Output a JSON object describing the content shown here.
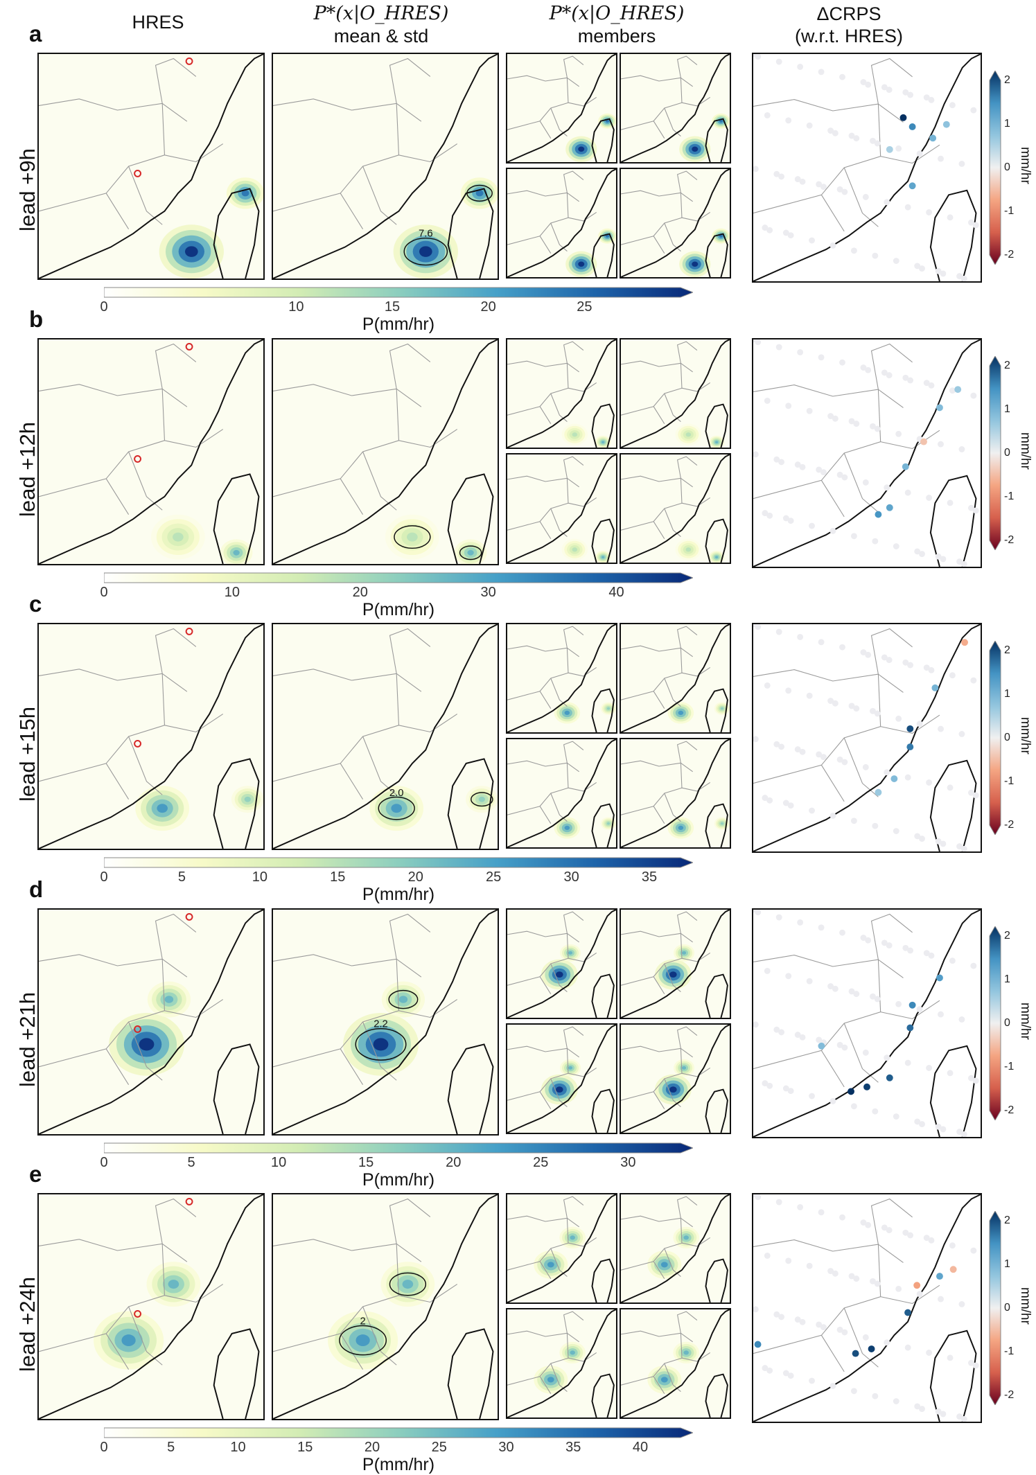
{
  "figure": {
    "column_titles": {
      "hres": "HRES",
      "mean_std_formula": "P*(x|O_HRES)",
      "mean_std": "mean & std",
      "members_formula": "P*(x|O_HRES)",
      "members": "members",
      "delta_crps": "ΔCRPS",
      "delta_crps_sub": "(w.r.t. HRES)"
    }
  },
  "chart_data": [
    {
      "type": "heatmap",
      "row": "a",
      "row_label": "lead +9h",
      "colorbar_label": "P(mm/hr)",
      "colorbar_ticks": [
        "0",
        "10",
        "15",
        "20",
        "25"
      ],
      "colorbar_range": [
        0,
        30
      ],
      "contour_labels": [
        "7.6"
      ],
      "delta_colorbar": {
        "label": "mm/hr",
        "ticks": [
          "2",
          "1",
          "0",
          "-1",
          "-2"
        ],
        "range": [
          -2,
          2
        ]
      },
      "precip_centers": [
        {
          "x": 0.68,
          "y": 0.88,
          "r": 0.12,
          "v": 1.0
        },
        {
          "x": 0.92,
          "y": 0.62,
          "r": 0.07,
          "v": 0.8
        }
      ],
      "station_dots": [
        {
          "x": 0.66,
          "y": 0.28,
          "v": 2.0
        },
        {
          "x": 0.7,
          "y": 0.32,
          "v": 1.4
        },
        {
          "x": 0.79,
          "y": 0.37,
          "v": 0.9
        },
        {
          "x": 0.85,
          "y": 0.31,
          "v": 0.7
        },
        {
          "x": 0.7,
          "y": 0.58,
          "v": 1.1
        },
        {
          "x": 0.6,
          "y": 0.42,
          "v": 0.5
        }
      ]
    },
    {
      "type": "heatmap",
      "row": "b",
      "row_label": "lead +12h",
      "colorbar_label": "P(mm/hr)",
      "colorbar_ticks": [
        "0",
        "10",
        "20",
        "30",
        "40"
      ],
      "colorbar_range": [
        0,
        45
      ],
      "contour_labels": [],
      "delta_colorbar": {
        "label": "mm/hr",
        "ticks": [
          "2",
          "1",
          "0",
          "-1",
          "-2"
        ],
        "range": [
          -2,
          2
        ]
      },
      "precip_centers": [
        {
          "x": 0.62,
          "y": 0.88,
          "r": 0.1,
          "v": 0.4
        },
        {
          "x": 0.88,
          "y": 0.95,
          "r": 0.06,
          "v": 0.6
        }
      ],
      "station_dots": [
        {
          "x": 0.55,
          "y": 0.77,
          "v": 1.3
        },
        {
          "x": 0.6,
          "y": 0.74,
          "v": 1.1
        },
        {
          "x": 0.67,
          "y": 0.56,
          "v": 0.9
        },
        {
          "x": 0.82,
          "y": 0.3,
          "v": 0.8
        },
        {
          "x": 0.9,
          "y": 0.22,
          "v": 0.6
        },
        {
          "x": 0.75,
          "y": 0.45,
          "v": -0.4
        }
      ]
    },
    {
      "type": "heatmap",
      "row": "c",
      "row_label": "lead +15h",
      "colorbar_label": "P(mm/hr)",
      "colorbar_ticks": [
        "0",
        "5",
        "10",
        "15",
        "20",
        "25",
        "30",
        "35"
      ],
      "colorbar_range": [
        0,
        37
      ],
      "contour_labels": [
        "2.0"
      ],
      "delta_colorbar": {
        "label": "mm/hr",
        "ticks": [
          "2",
          "1",
          "0",
          "-1",
          "-2"
        ],
        "range": [
          -2,
          2
        ]
      },
      "precip_centers": [
        {
          "x": 0.55,
          "y": 0.82,
          "r": 0.1,
          "v": 0.7
        },
        {
          "x": 0.93,
          "y": 0.78,
          "r": 0.06,
          "v": 0.5
        }
      ],
      "station_dots": [
        {
          "x": 0.69,
          "y": 0.46,
          "v": 1.8
        },
        {
          "x": 0.69,
          "y": 0.54,
          "v": 1.5
        },
        {
          "x": 0.62,
          "y": 0.68,
          "v": 0.8
        },
        {
          "x": 0.8,
          "y": 0.28,
          "v": 0.9
        },
        {
          "x": 0.93,
          "y": 0.08,
          "v": -0.6
        },
        {
          "x": 0.55,
          "y": 0.74,
          "v": 0.6
        }
      ]
    },
    {
      "type": "heatmap",
      "row": "d",
      "row_label": "lead +21h",
      "colorbar_label": "P(mm/hr)",
      "colorbar_ticks": [
        "0",
        "5",
        "10",
        "15",
        "20",
        "25",
        "30"
      ],
      "colorbar_range": [
        0,
        33
      ],
      "contour_labels": [
        "2.2"
      ],
      "delta_colorbar": {
        "label": "mm/hr",
        "ticks": [
          "2",
          "1",
          "0",
          "-1",
          "-2"
        ],
        "range": [
          -2,
          2
        ]
      },
      "precip_centers": [
        {
          "x": 0.48,
          "y": 0.6,
          "r": 0.14,
          "v": 1.0
        },
        {
          "x": 0.58,
          "y": 0.4,
          "r": 0.08,
          "v": 0.6
        }
      ],
      "station_dots": [
        {
          "x": 0.43,
          "y": 0.8,
          "v": 2.0
        },
        {
          "x": 0.5,
          "y": 0.78,
          "v": 1.9
        },
        {
          "x": 0.6,
          "y": 0.74,
          "v": 1.7
        },
        {
          "x": 0.69,
          "y": 0.52,
          "v": 1.6
        },
        {
          "x": 0.7,
          "y": 0.42,
          "v": 1.4
        },
        {
          "x": 0.82,
          "y": 0.3,
          "v": 1.2
        },
        {
          "x": 0.3,
          "y": 0.6,
          "v": 0.8
        }
      ]
    },
    {
      "type": "heatmap",
      "row": "e",
      "row_label": "lead +24h",
      "colorbar_label": "P(mm/hr)",
      "colorbar_ticks": [
        "0",
        "5",
        "10",
        "15",
        "20",
        "25",
        "30",
        "35",
        "40"
      ],
      "colorbar_range": [
        0,
        43
      ],
      "contour_labels": [
        "2"
      ],
      "delta_colorbar": {
        "label": "mm/hr",
        "ticks": [
          "2",
          "1",
          "0",
          "-1",
          "-2"
        ],
        "range": [
          -2,
          2
        ]
      },
      "precip_centers": [
        {
          "x": 0.4,
          "y": 0.65,
          "r": 0.13,
          "v": 0.7
        },
        {
          "x": 0.6,
          "y": 0.4,
          "r": 0.1,
          "v": 0.6
        }
      ],
      "station_dots": [
        {
          "x": 0.45,
          "y": 0.7,
          "v": 1.8
        },
        {
          "x": 0.52,
          "y": 0.68,
          "v": 1.9
        },
        {
          "x": 0.68,
          "y": 0.52,
          "v": 1.7
        },
        {
          "x": 0.82,
          "y": 0.36,
          "v": 1.1
        },
        {
          "x": 0.72,
          "y": 0.4,
          "v": -0.7
        },
        {
          "x": 0.88,
          "y": 0.33,
          "v": -0.5
        },
        {
          "x": 0.02,
          "y": 0.66,
          "v": 1.4
        }
      ]
    }
  ]
}
